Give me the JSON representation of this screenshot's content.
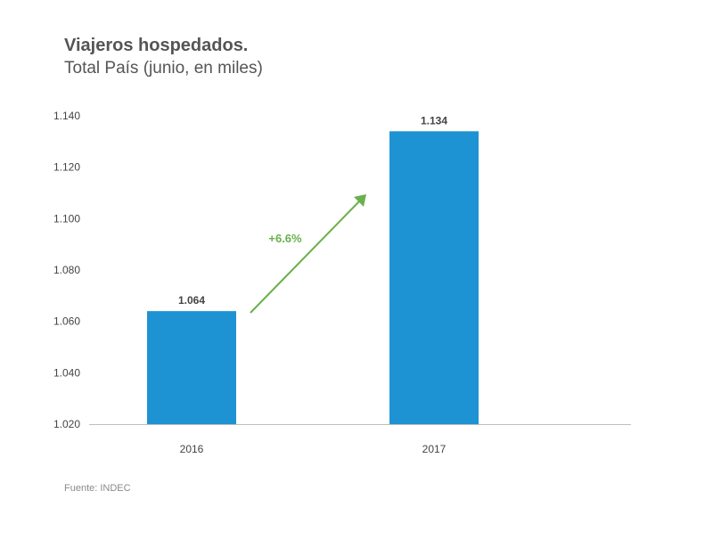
{
  "chart_data": {
    "type": "bar",
    "title": "Viajeros hospedados.",
    "subtitle": "Total País (junio, en miles)",
    "categories": [
      "2016",
      "2017"
    ],
    "values": [
      1064,
      1134
    ],
    "data_labels": [
      "1.064",
      "1.134"
    ],
    "ylim": [
      1020,
      1140
    ],
    "yticks": [
      1020,
      1040,
      1060,
      1080,
      1100,
      1120,
      1140
    ],
    "ytick_labels": [
      "1.020",
      "1.040",
      "1.060",
      "1.080",
      "1.100",
      "1.120",
      "1.140"
    ],
    "xlabel": "",
    "ylabel": "",
    "grid": false,
    "annotation": {
      "text": "+6.6%",
      "type": "arrow",
      "from": "2016",
      "to": "2017"
    },
    "colors": {
      "bar": "#1e93d3",
      "annotation": "#6ab04c",
      "axis": "#bdbdbd"
    }
  },
  "source": "Fuente: INDEC"
}
